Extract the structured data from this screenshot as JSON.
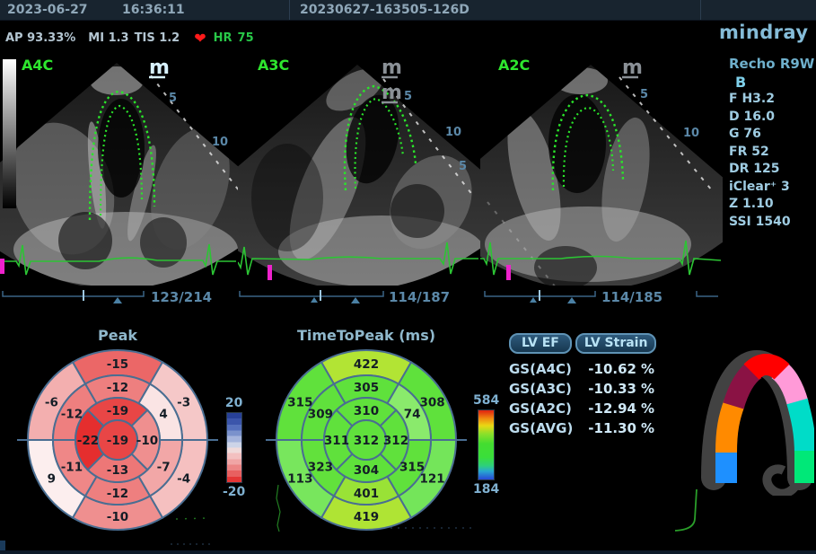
{
  "top_bar": {
    "date": "2023-06-27",
    "time": "16:36:11",
    "exam_id": "20230627-163505-126D"
  },
  "status_bar": {
    "ap": "AP 93.33%",
    "mi": "MI 1.3",
    "tis": "TIS 1.2",
    "hr_label": "HR",
    "hr_value": "75"
  },
  "brand": {
    "name": "mindray",
    "mark": "m"
  },
  "params": {
    "probe": "Recho R9W",
    "mode": "B",
    "items": [
      "F H3.2",
      "D 16.0",
      "G 76",
      "FR 52",
      "DR 125",
      "iClear⁺ 3",
      "Z 1.10",
      "SSI 1540"
    ]
  },
  "views": [
    {
      "label": "A4C",
      "frame": "123/214",
      "depth": [
        "5",
        "10"
      ]
    },
    {
      "label": "A3C",
      "frame": "114/187",
      "depth": [
        "5",
        "10",
        "5"
      ]
    },
    {
      "label": "A2C",
      "frame": "114/185",
      "depth": [
        "5",
        "10"
      ]
    }
  ],
  "results": {
    "tabs": [
      {
        "label": "LV EF"
      },
      {
        "label": "LV Strain"
      }
    ],
    "rows": [
      {
        "label": "GS(A4C)",
        "value": "-10.62",
        "unit": "%"
      },
      {
        "label": "GS(A3C)",
        "value": "-10.33",
        "unit": "%"
      },
      {
        "label": "GS(A2C)",
        "value": "-12.94",
        "unit": "%"
      },
      {
        "label": "GS(AVG)",
        "value": "-11.30",
        "unit": "%"
      }
    ]
  },
  "chart_data": [
    {
      "type": "bullseye",
      "title": "Peak",
      "units": "%",
      "segment_order": "clockwise from top; inner ring: top,right,bottom,left",
      "center": -19,
      "inner_ring": [
        -19,
        -10,
        -13,
        -22
      ],
      "mid_ring": [
        -12,
        4,
        -7,
        -12,
        -11,
        -12
      ],
      "outer_ring": [
        -15,
        -3,
        -4,
        -10,
        9,
        -6
      ],
      "colorbar": {
        "max": 20,
        "min": -20,
        "max_color": "#274098",
        "min_color": "#e43636"
      }
    },
    {
      "type": "bullseye",
      "title": "TimeToPeak (ms)",
      "units": "ms",
      "segment_order": "clockwise from top; inner ring: top,right,bottom,left",
      "center": 312,
      "inner_ring": [
        310,
        312,
        304,
        311
      ],
      "mid_ring": [
        305,
        74,
        315,
        401,
        323,
        309
      ],
      "outer_ring": [
        422,
        308,
        121,
        419,
        113,
        315
      ],
      "colorbar": {
        "max": 584,
        "min": 184,
        "max_color": "#e02010",
        "min_color": "#2848d8"
      }
    }
  ],
  "segment_icon": {
    "colors": [
      "#ff0000",
      "#8a1244",
      "#ff8a00",
      "#1e90ff",
      "#ff9ad8",
      "#00dcc8",
      "#00e878"
    ]
  },
  "ui_colors": {
    "ecg_green": "#2cc434",
    "contour_green": "#2ae62a",
    "sweep_marker": "#ee22cc",
    "label_green": "#2ee62e"
  }
}
